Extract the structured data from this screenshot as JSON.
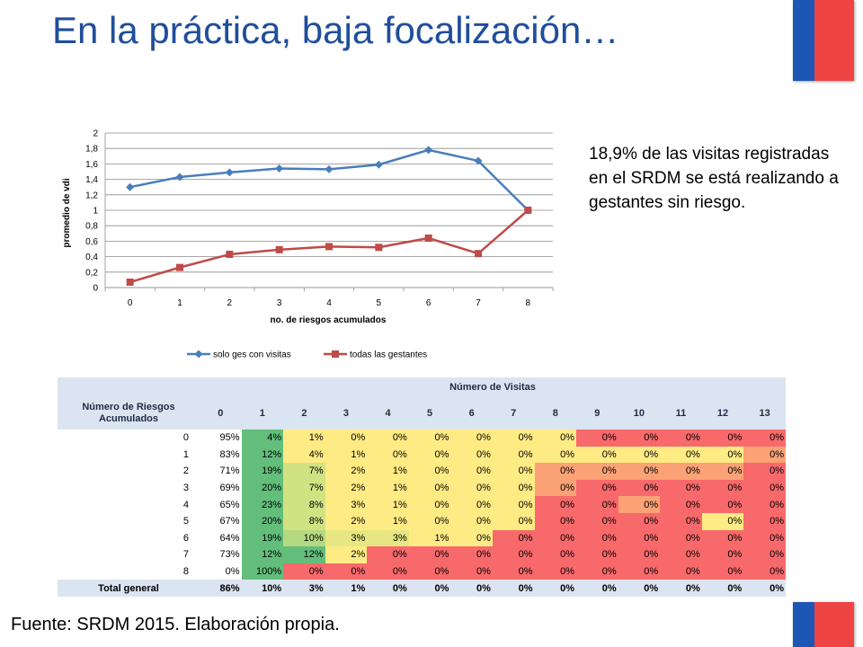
{
  "slide": {
    "title": "En la práctica, baja focalización…",
    "note": "18,9% de las visitas registradas en el SRDM se está realizando a gestantes sin riesgo.",
    "source": "Fuente: SRDM 2015. Elaboración propia."
  },
  "chart_data": {
    "type": "line",
    "x": [
      0,
      1,
      2,
      3,
      4,
      5,
      6,
      7,
      8
    ],
    "series": [
      {
        "name": "solo ges con visitas",
        "values": [
          1.3,
          1.43,
          1.49,
          1.54,
          1.53,
          1.59,
          1.78,
          1.64,
          1.0
        ],
        "color": "#4a7ebb",
        "marker": "diamond"
      },
      {
        "name": "todas las gestantes",
        "values": [
          0.07,
          0.26,
          0.43,
          0.49,
          0.53,
          0.52,
          0.64,
          0.44,
          1.0
        ],
        "color": "#be4b48",
        "marker": "square"
      }
    ],
    "ylim": [
      0,
      2
    ],
    "ytick_labels": [
      "0",
      "0,2",
      "0,4",
      "0,6",
      "0,8",
      "1",
      "1,2",
      "1,4",
      "1,6",
      "1,8",
      "2"
    ],
    "xtick_labels": [
      "0",
      "1",
      "2",
      "3",
      "4",
      "5",
      "6",
      "7",
      "8"
    ],
    "xlabel": "no. de riesgos acumulados",
    "ylabel": "promedio de vdi",
    "grid": true,
    "legend": "bottom"
  },
  "table": {
    "row_header": "Número de Riesgos Acumulados",
    "col_group_header": "Número de Visitas",
    "columns": [
      "0",
      "1",
      "2",
      "3",
      "4",
      "5",
      "6",
      "7",
      "8",
      "9",
      "10",
      "11",
      "12",
      "13"
    ],
    "rows": [
      {
        "label": "0",
        "values": [
          "95%",
          "4%",
          "1%",
          "0%",
          "0%",
          "0%",
          "0%",
          "0%",
          "0%",
          "0%",
          "0%",
          "0%",
          "0%",
          "0%"
        ]
      },
      {
        "label": "1",
        "values": [
          "83%",
          "12%",
          "4%",
          "1%",
          "0%",
          "0%",
          "0%",
          "0%",
          "0%",
          "0%",
          "0%",
          "0%",
          "0%",
          "0%"
        ]
      },
      {
        "label": "2",
        "values": [
          "71%",
          "19%",
          "7%",
          "2%",
          "1%",
          "0%",
          "0%",
          "0%",
          "0%",
          "0%",
          "0%",
          "0%",
          "0%",
          "0%"
        ]
      },
      {
        "label": "3",
        "values": [
          "69%",
          "20%",
          "7%",
          "2%",
          "1%",
          "0%",
          "0%",
          "0%",
          "0%",
          "0%",
          "0%",
          "0%",
          "0%",
          "0%"
        ]
      },
      {
        "label": "4",
        "values": [
          "65%",
          "23%",
          "8%",
          "3%",
          "1%",
          "0%",
          "0%",
          "0%",
          "0%",
          "0%",
          "0%",
          "0%",
          "0%",
          "0%"
        ]
      },
      {
        "label": "5",
        "values": [
          "67%",
          "20%",
          "8%",
          "2%",
          "1%",
          "0%",
          "0%",
          "0%",
          "0%",
          "0%",
          "0%",
          "0%",
          "0%",
          "0%"
        ]
      },
      {
        "label": "6",
        "values": [
          "64%",
          "19%",
          "10%",
          "3%",
          "3%",
          "1%",
          "0%",
          "0%",
          "0%",
          "0%",
          "0%",
          "0%",
          "0%",
          "0%"
        ]
      },
      {
        "label": "7",
        "values": [
          "73%",
          "12%",
          "12%",
          "2%",
          "0%",
          "0%",
          "0%",
          "0%",
          "0%",
          "0%",
          "0%",
          "0%",
          "0%",
          "0%"
        ]
      },
      {
        "label": "8",
        "values": [
          "0%",
          "100%",
          "0%",
          "0%",
          "0%",
          "0%",
          "0%",
          "0%",
          "0%",
          "0%",
          "0%",
          "0%",
          "0%",
          "0%"
        ]
      }
    ],
    "total": {
      "label": "Total general",
      "values": [
        "86%",
        "10%",
        "3%",
        "1%",
        "0%",
        "0%",
        "0%",
        "0%",
        "0%",
        "0%",
        "0%",
        "0%",
        "0%",
        "0%"
      ]
    },
    "cell_colors": [
      [
        "#ffffff",
        "#63be7b",
        "#ffeb84",
        "#ffeb84",
        "#ffeb84",
        "#ffeb84",
        "#ffeb84",
        "#ffeb84",
        "#ffeb84",
        "#f8696b",
        "#f8696b",
        "#f8696b",
        "#f8696b",
        "#f8696b"
      ],
      [
        "#ffffff",
        "#63be7b",
        "#ffeb84",
        "#ffeb84",
        "#ffeb84",
        "#ffeb84",
        "#ffeb84",
        "#ffeb84",
        "#ffeb84",
        "#ffeb84",
        "#ffeb84",
        "#ffeb84",
        "#ffeb84",
        "#fba276"
      ],
      [
        "#ffffff",
        "#63be7b",
        "#d1e282",
        "#ffeb84",
        "#ffeb84",
        "#ffeb84",
        "#ffeb84",
        "#ffeb84",
        "#fba276",
        "#fba276",
        "#fba276",
        "#fba276",
        "#fba276",
        "#f8696b"
      ],
      [
        "#ffffff",
        "#63be7b",
        "#d1e282",
        "#ffeb84",
        "#ffeb84",
        "#ffeb84",
        "#ffeb84",
        "#ffeb84",
        "#fba276",
        "#f8696b",
        "#f8696b",
        "#f8696b",
        "#f8696b",
        "#f8696b"
      ],
      [
        "#ffffff",
        "#63be7b",
        "#d1e282",
        "#ffeb84",
        "#ffeb84",
        "#ffeb84",
        "#ffeb84",
        "#ffeb84",
        "#f8696b",
        "#f8696b",
        "#fba276",
        "#f8696b",
        "#f8696b",
        "#f8696b"
      ],
      [
        "#ffffff",
        "#63be7b",
        "#d1e282",
        "#ffeb84",
        "#ffeb84",
        "#ffeb84",
        "#ffeb84",
        "#ffeb84",
        "#f8696b",
        "#f8696b",
        "#f8696b",
        "#f8696b",
        "#ffeb84",
        "#f8696b"
      ],
      [
        "#ffffff",
        "#63be7b",
        "#b5d980",
        "#e6e783",
        "#e6e783",
        "#ffeb84",
        "#ffeb84",
        "#f8696b",
        "#f8696b",
        "#f8696b",
        "#f8696b",
        "#f8696b",
        "#f8696b",
        "#f8696b"
      ],
      [
        "#ffffff",
        "#63be7b",
        "#63be7b",
        "#ffeb84",
        "#f8696b",
        "#f8696b",
        "#f8696b",
        "#f8696b",
        "#f8696b",
        "#f8696b",
        "#f8696b",
        "#f8696b",
        "#f8696b",
        "#f8696b"
      ],
      [
        "#ffffff",
        "#63be7b",
        "#f8696b",
        "#f8696b",
        "#f8696b",
        "#f8696b",
        "#f8696b",
        "#f8696b",
        "#f8696b",
        "#f8696b",
        "#f8696b",
        "#f8696b",
        "#f8696b",
        "#f8696b"
      ]
    ]
  }
}
